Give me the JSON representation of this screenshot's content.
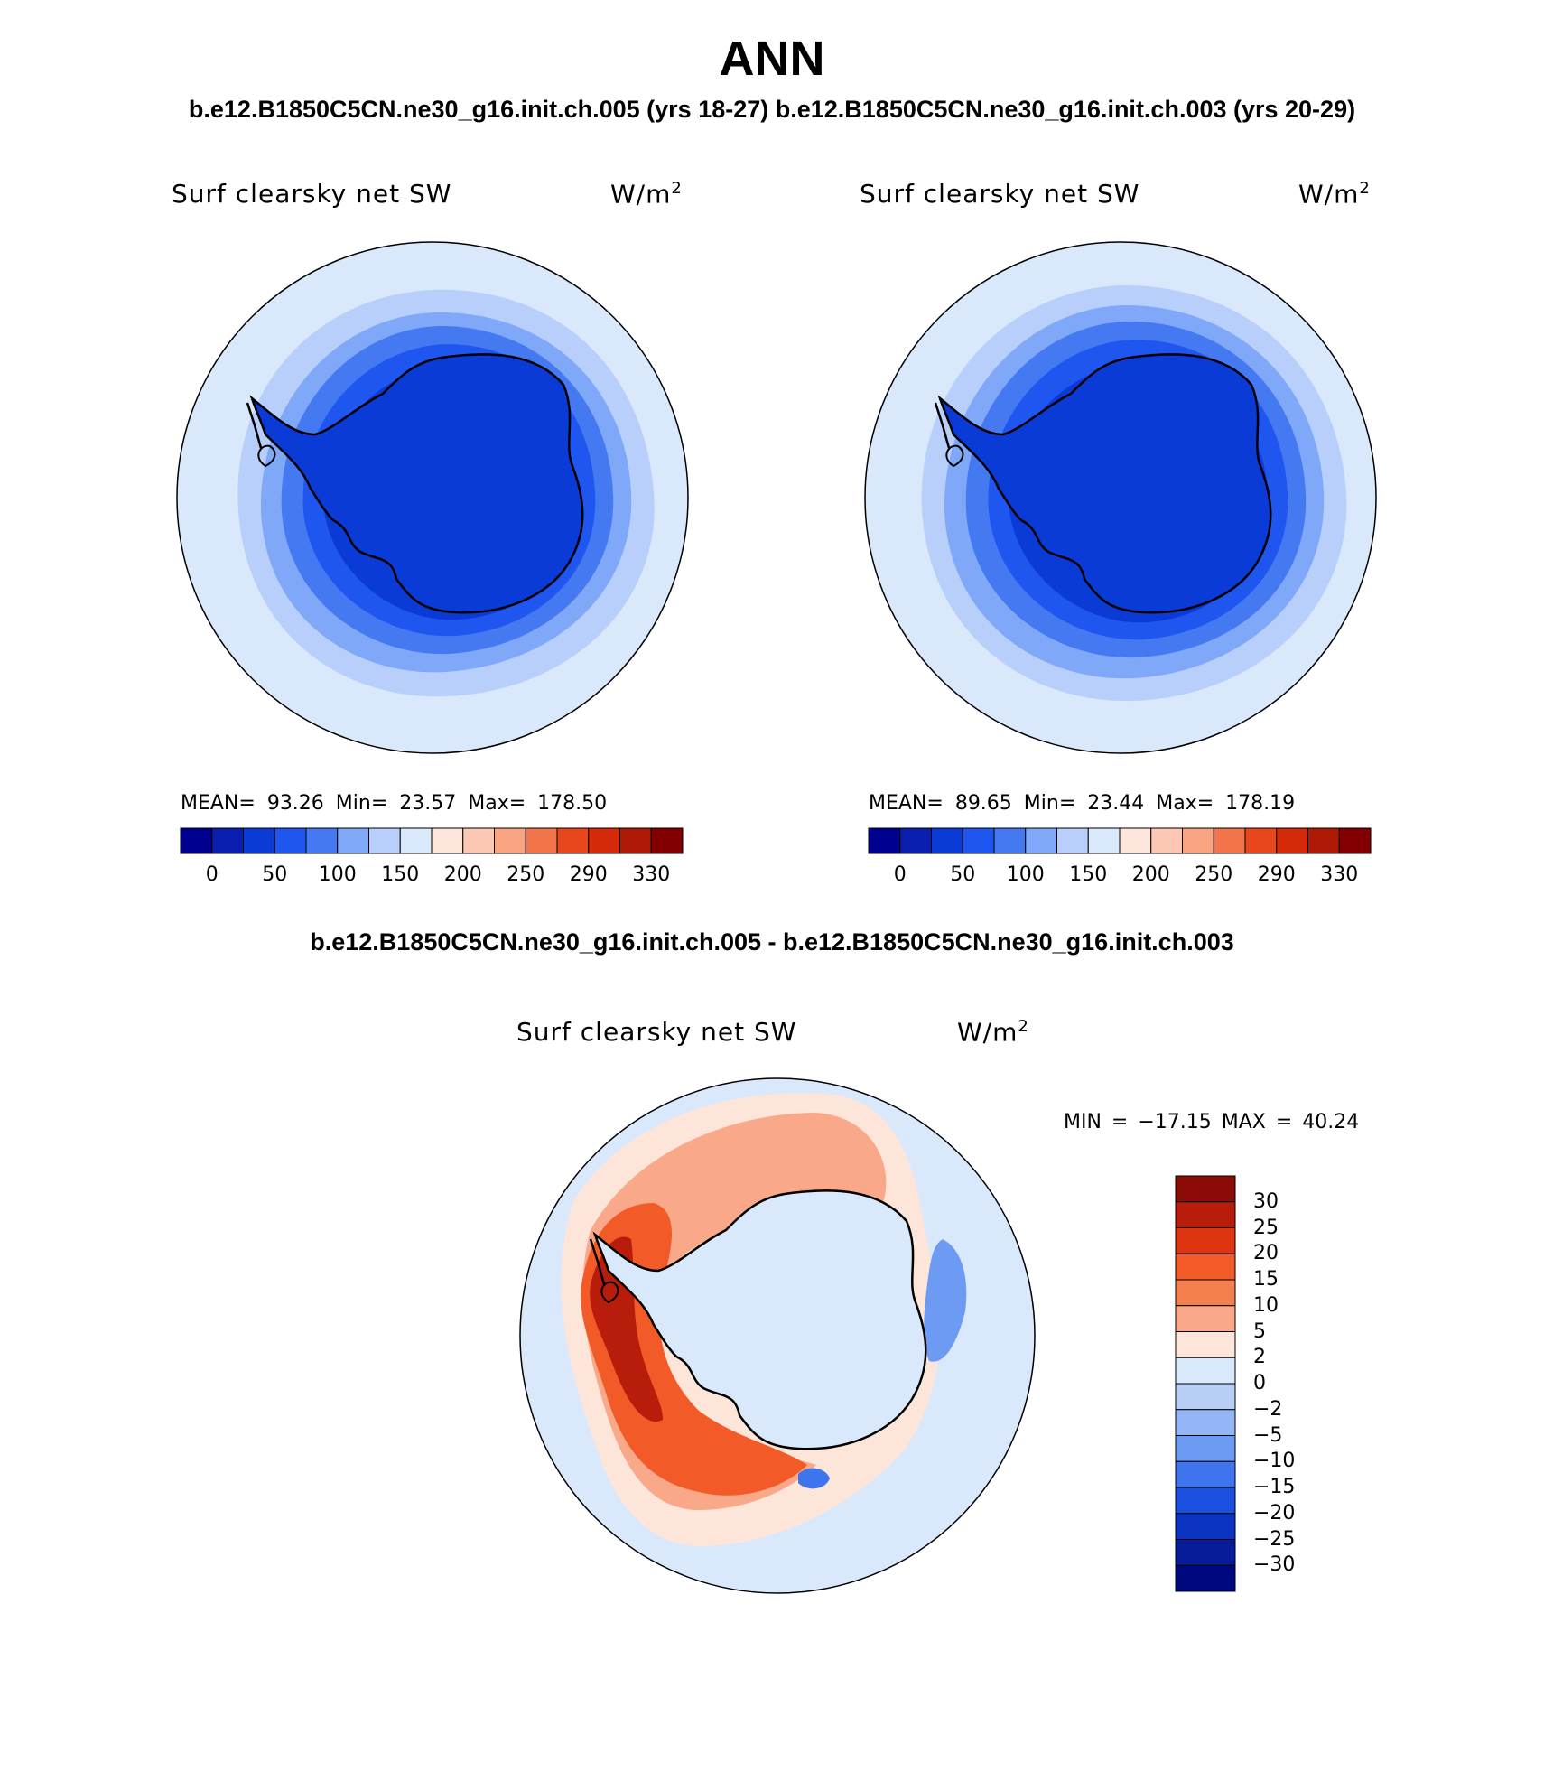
{
  "header": {
    "title": "ANN",
    "subtitle": "b.e12.B1850C5CN.ne30_g16.init.ch.005 (yrs 18-27)  b.e12.B1850C5CN.ne30_g16.init.ch.003 (yrs 20-29)",
    "diff_title": "b.e12.B1850C5CN.ne30_g16.init.ch.005 - b.e12.B1850C5CN.ne30_g16.init.ch.003"
  },
  "panel_left": {
    "variable": "Surf clearsky net SW",
    "units_base": "W/m",
    "units_exp": "2",
    "stats": "MEAN=   93.26   Min=   23.57   Max=  178.50"
  },
  "panel_right": {
    "variable": "Surf clearsky net SW",
    "units_base": "W/m",
    "units_exp": "2",
    "stats": "MEAN=   89.65   Min=   23.44   Max=  178.19"
  },
  "panel_diff": {
    "variable": "Surf clearsky net SW",
    "units_base": "W/m",
    "units_exp": "2",
    "stats": "MIN = −17.15  MAX =   40.24"
  },
  "colorbar_abs": {
    "colors": [
      "#00008f",
      "#0a1fb0",
      "#0b3bd6",
      "#1f56ef",
      "#4479f2",
      "#80a8f8",
      "#b8cffb",
      "#d9e8fb",
      "#fde7dc",
      "#fcc8b4",
      "#f8a480",
      "#f2744a",
      "#e8471e",
      "#d42a0a",
      "#ae1a06",
      "#820001"
    ],
    "labels": [
      "0",
      "50",
      "100",
      "150",
      "200",
      "250",
      "290",
      "330"
    ]
  },
  "colorbar_diff": {
    "colors_top_to_bottom": [
      "#8b0b07",
      "#b81c0b",
      "#dc3510",
      "#f25b28",
      "#f5804f",
      "#f9a98a",
      "#fde5da",
      "#d9e8fb",
      "#b7cff5",
      "#94b6f6",
      "#6d9af3",
      "#3f74ef",
      "#1b4fdf",
      "#0b33c1",
      "#061c99",
      "#000880"
    ],
    "labels": [
      "30",
      "25",
      "20",
      "15",
      "10",
      "5",
      "2",
      "0",
      "−2",
      "−5",
      "−10",
      "−15",
      "−20",
      "−25",
      "−30"
    ]
  },
  "map_colors": {
    "ocean_outer": "#d9e8fb",
    "band_1": "#b8cffb",
    "band_2": "#80a8f8",
    "band_3": "#4479f2",
    "band_4": "#1f56ef",
    "interior": "#0b3bd6",
    "inner_dark": "#0a28c0",
    "diff_pos_light": "#fde5da",
    "diff_pos_mid": "#f9a98a",
    "diff_pos_strong": "#f25b28",
    "diff_pos_max": "#b81c0b",
    "diff_neg": "#6d9af3",
    "diff_neg_strong": "#3f74ef",
    "diff_ocean": "#d9e8fb",
    "coastline": "#000000"
  }
}
